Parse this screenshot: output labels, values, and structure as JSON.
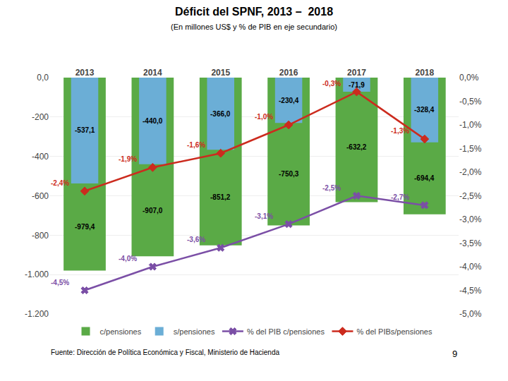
{
  "chart_data": {
    "type": "bar",
    "title": "Déficit del SPNF, 2013 –  2018",
    "subtitle": "(En millones US$ y % de PIB en eje secundario)",
    "categories": [
      "2013",
      "2014",
      "2015",
      "2016",
      "2017",
      "2018"
    ],
    "series": [
      {
        "name": "c/pensiones",
        "type": "bar",
        "color": "#5aaa46",
        "values": [
          -979.4,
          -907.0,
          -851.2,
          -750.3,
          -632.2,
          -694.4
        ],
        "value_labels": [
          "-979,4",
          "-907,0",
          "-851,2",
          "-750,3",
          "-632,2",
          "-694,4"
        ]
      },
      {
        "name": "s/pensiones",
        "type": "bar",
        "color": "#6baed6",
        "values": [
          -537.1,
          -440.0,
          -366.0,
          -230.4,
          -71.9,
          -328.4
        ],
        "value_labels": [
          "-537,1",
          "-440,0",
          "-366,0",
          "-230,4",
          "-71,9",
          "-328,4"
        ]
      },
      {
        "name": "% del PIB c/pensiones",
        "type": "line",
        "axis": "y2",
        "color": "#7b4fa6",
        "marker": "x",
        "values": [
          -4.5,
          -4.0,
          -3.6,
          -3.1,
          -2.5,
          -2.7
        ],
        "value_labels": [
          "-4,5%",
          "-4,0%",
          "-3,6%",
          "-3,1%",
          "-2,5%",
          "-2,7%"
        ]
      },
      {
        "name": "% del PIBs/pensiones",
        "type": "line",
        "axis": "y2",
        "color": "#cc2b1e",
        "marker": "diamond",
        "values": [
          -2.4,
          -1.9,
          -1.6,
          -1.0,
          -0.3,
          -1.3
        ],
        "value_labels": [
          "-2,4%",
          "-1,9%",
          "-1,6%",
          "-1,0%",
          "-0,3%",
          "-1,3%"
        ]
      }
    ],
    "ylim": [
      -1200,
      0
    ],
    "yticks": [
      {
        "value": -1200,
        "label": "-1.200"
      },
      {
        "value": -1000,
        "label": "-1.000"
      },
      -800,
      -600,
      -400,
      -200,
      {
        "value": 0,
        "label": "0,0"
      }
    ],
    "y2lim": [
      -5.0,
      0.0
    ],
    "y2ticks": [
      {
        "value": 0.0,
        "label": "0,0%"
      },
      {
        "value": -0.5,
        "label": "-0,5%"
      },
      {
        "value": -1.0,
        "label": "-1,0%"
      },
      {
        "value": -1.5,
        "label": "-1,5%"
      },
      {
        "value": -2.0,
        "label": "-2,0%"
      },
      {
        "value": -2.5,
        "label": "-2,5%"
      },
      {
        "value": -3.0,
        "label": "-3,0%"
      },
      {
        "value": -3.5,
        "label": "-3,5%"
      },
      {
        "value": -4.0,
        "label": "-4,0%"
      },
      {
        "value": -4.5,
        "label": "-4,5%"
      },
      {
        "value": -5.0,
        "label": "-5,0%"
      }
    ],
    "grid": true,
    "legend": "bottom",
    "data_labels": true,
    "annotations": [
      "Fuente: Dirección de Política Económica y Fiscal, Ministerio de Hacienda",
      "9"
    ]
  }
}
